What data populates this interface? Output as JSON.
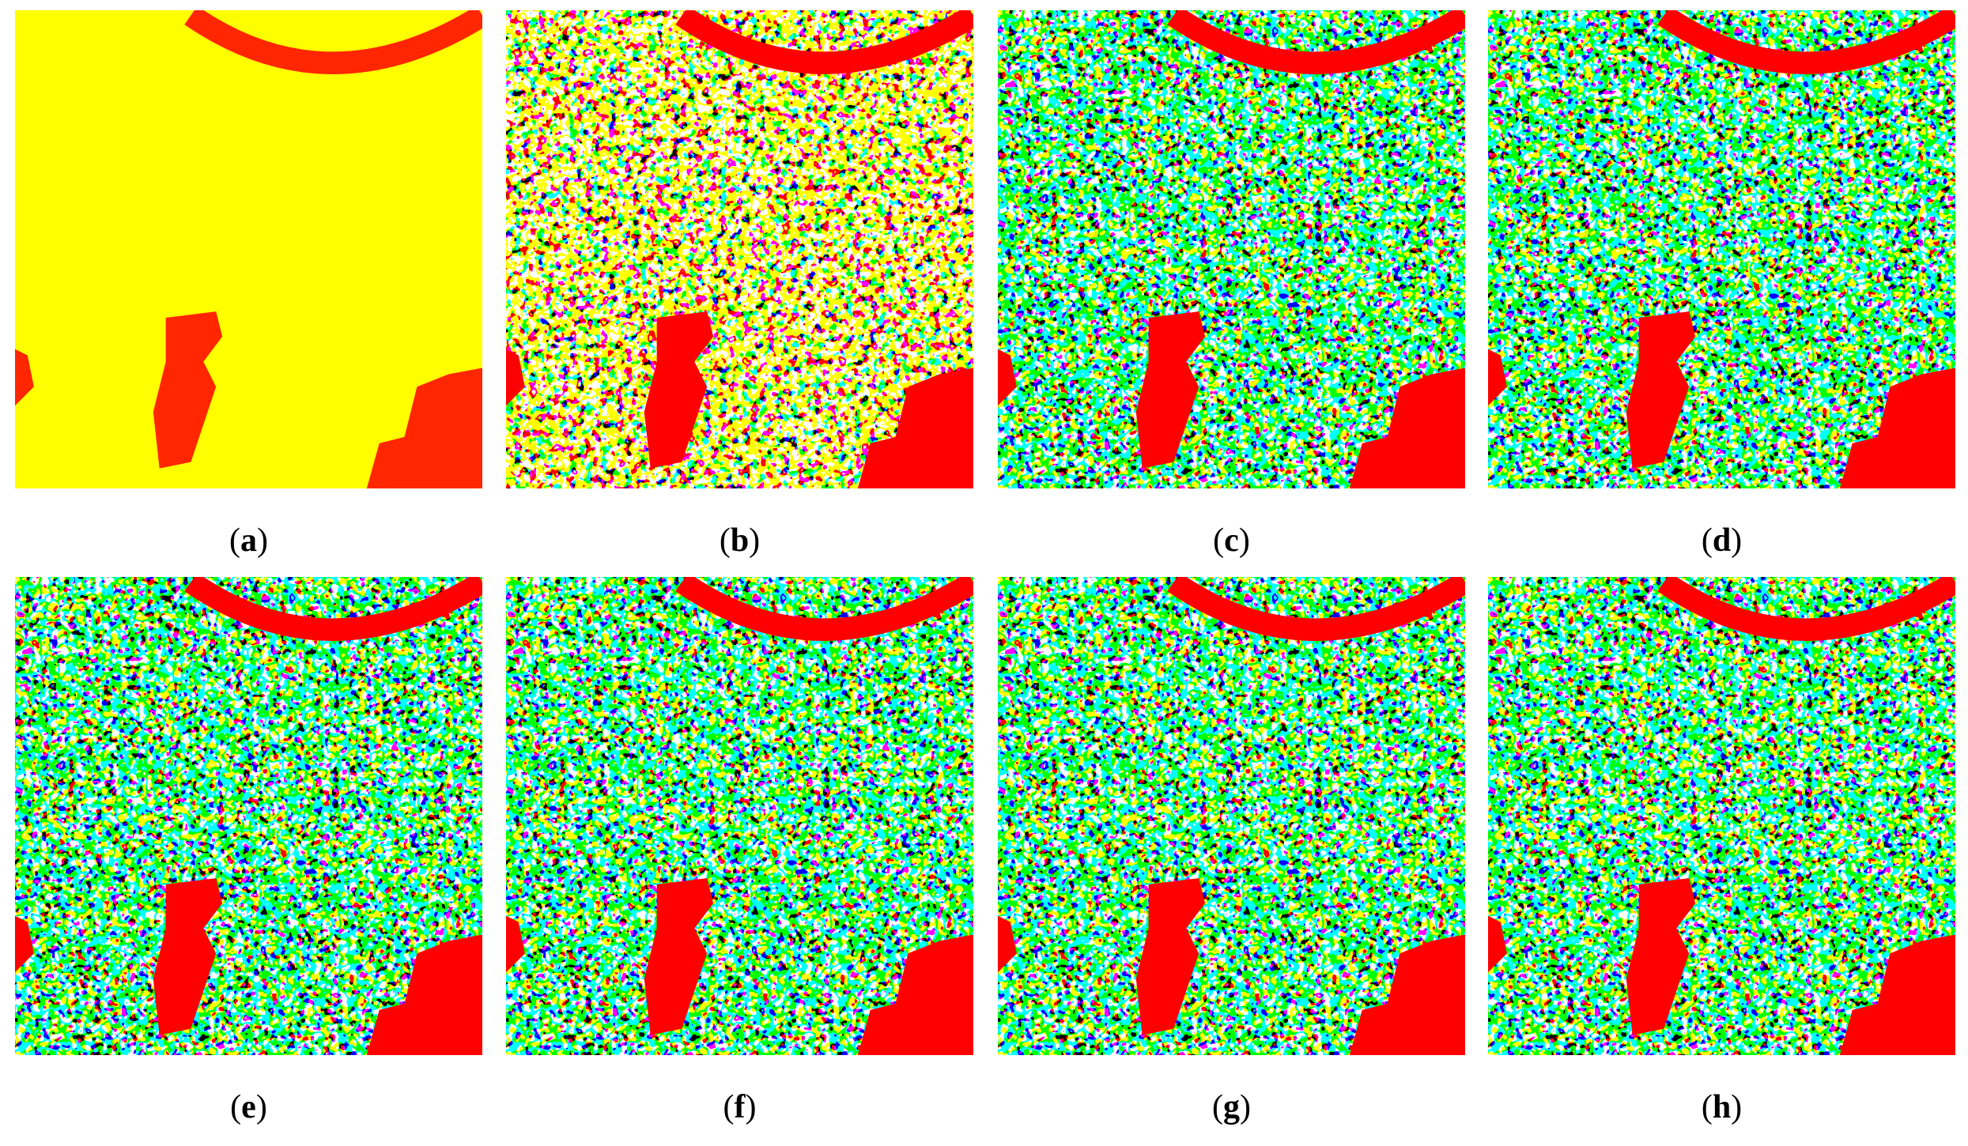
{
  "caption_open": "(",
  "caption_close": ")",
  "panels": [
    {
      "label": "a"
    },
    {
      "label": "b"
    },
    {
      "label": "c"
    },
    {
      "label": "d"
    },
    {
      "label": "e"
    },
    {
      "label": "f"
    },
    {
      "label": "g"
    },
    {
      "label": "h"
    }
  ]
}
